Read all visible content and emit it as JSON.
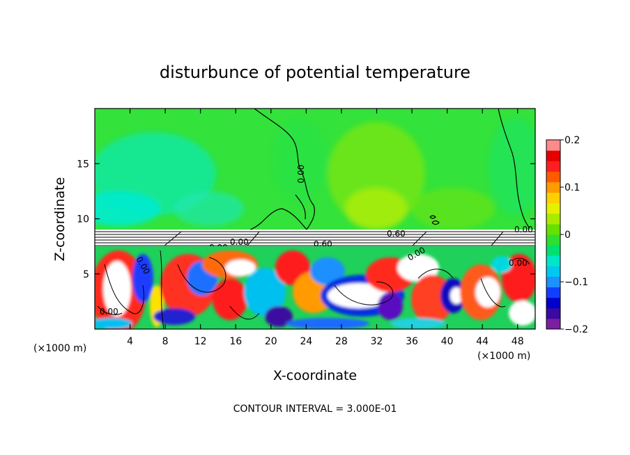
{
  "chart_data": {
    "type": "heatmap",
    "title": "disturbunce of potential temperature",
    "xlabel": "X-coordinate",
    "ylabel": "Z-coordinate",
    "x_unit": "(×1000 m)",
    "y_unit": "(×1000 m)",
    "xlim": [
      0,
      50
    ],
    "ylim": [
      0,
      20
    ],
    "x_ticks": [
      4,
      8,
      12,
      16,
      20,
      24,
      28,
      32,
      36,
      40,
      44,
      48
    ],
    "y_ticks": [
      5,
      10,
      15
    ],
    "x_tick_labels": [
      "4",
      "8",
      "12",
      "16",
      "20",
      "24",
      "28",
      "32",
      "36",
      "40",
      "44",
      "48"
    ],
    "y_tick_labels": [
      "5",
      "10",
      "15"
    ],
    "colorbar": {
      "min": -0.2,
      "max": 0.2,
      "ticks": [
        0.2,
        0.1,
        0,
        -0.1,
        -0.2
      ],
      "tick_labels": [
        "0.2",
        "0.1",
        "0",
        "−0.1",
        "−0.2"
      ],
      "colors": [
        "#7a1fa2",
        "#3a0aa0",
        "#0000cc",
        "#1040ff",
        "#1e90ff",
        "#00c8f0",
        "#00e6c8",
        "#00e070",
        "#2ee02e",
        "#66e000",
        "#aaea00",
        "#e6f000",
        "#ffd000",
        "#ff9a00",
        "#ff5a00",
        "#ff1e1e",
        "#e60000",
        "#ff8a8a"
      ]
    },
    "contour_labels": [
      "0.00",
      "0.00",
      "0.00",
      "0.00",
      "0.60",
      "0.00",
      "0.60",
      "0.00",
      "0.00",
      "0.00"
    ],
    "contour_interval": "CONTOUR INTERVAL = 3.000E-01"
  }
}
